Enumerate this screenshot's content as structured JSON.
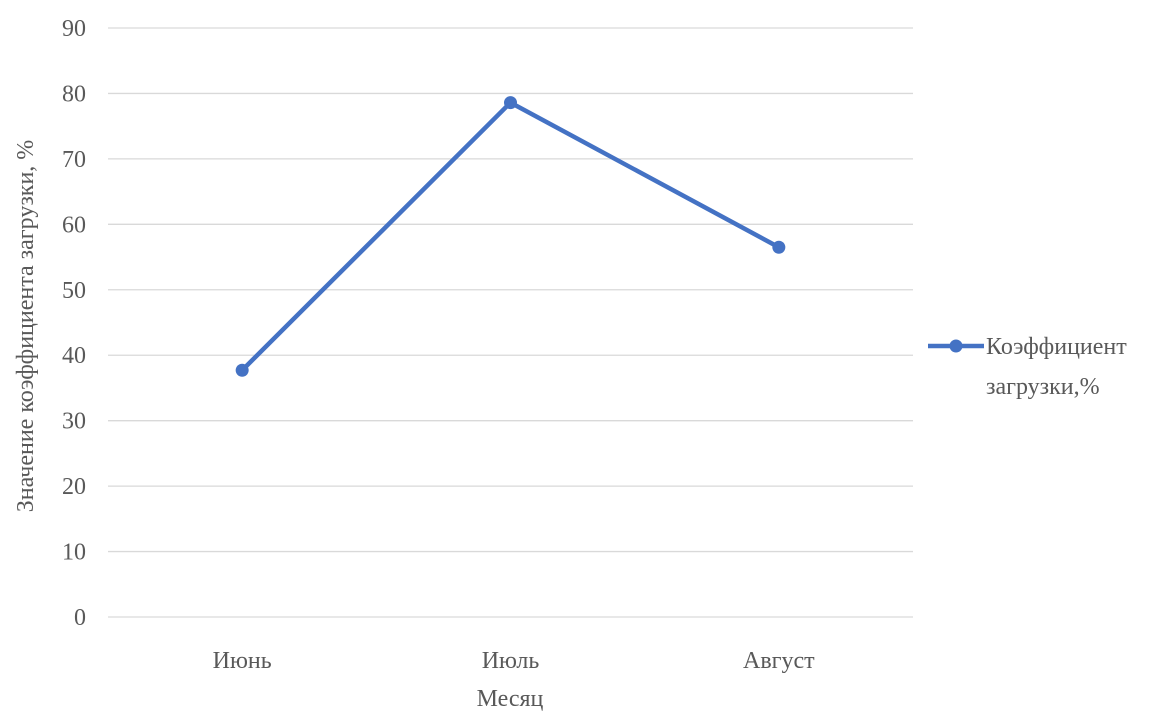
{
  "chart_data": {
    "type": "line",
    "categories": [
      "Июнь",
      "Июль",
      "Август"
    ],
    "series": [
      {
        "name": "Коэффициент загрузки,%",
        "values": [
          37.7,
          78.6,
          56.5
        ],
        "color": "#4472c4"
      }
    ],
    "xlabel": "Месяц",
    "ylabel": "Значение коэффициента загрузки, %",
    "ylim": [
      0,
      90
    ],
    "yticks": [
      0,
      10,
      20,
      30,
      40,
      50,
      60,
      70,
      80,
      90
    ],
    "grid": true,
    "legend_position": "right",
    "legend_lines": [
      "Коэффициент",
      "загрузки,%"
    ]
  }
}
